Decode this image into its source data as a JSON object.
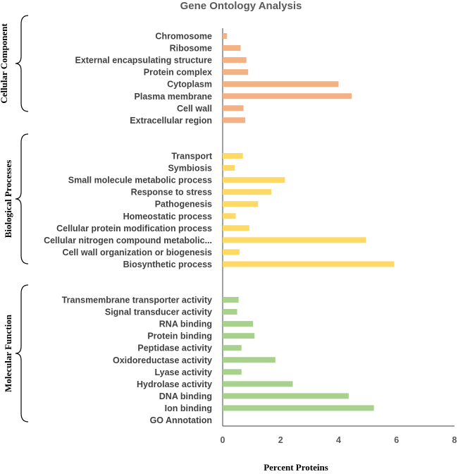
{
  "chart_data": {
    "type": "bar",
    "orientation": "horizontal",
    "title": "Gene Ontology Analysis",
    "xlabel": "Percent Proteins",
    "xlim": [
      0,
      8
    ],
    "xticks": [
      0,
      2,
      4,
      6,
      8
    ],
    "grid": false,
    "groups": [
      {
        "name": "Cellular Component",
        "color": "#f4b183",
        "categories": [
          "Chromosome",
          "Ribosome",
          "External encapsulating structure",
          "Protein complex",
          "Cytoplasm",
          "Plasma membrane",
          "Cell wall",
          "Extracellular region"
        ],
        "values": [
          0.15,
          0.62,
          0.82,
          0.88,
          4.0,
          4.45,
          0.72,
          0.78
        ]
      },
      {
        "name": "Biological Processes",
        "color": "#ffd966",
        "categories": [
          "Transport",
          "Symbiosis",
          "Small molecule metabolic process",
          "Response to stress",
          "Pathogenesis",
          "Homeostatic process",
          "Cellular protein modification process",
          "Cellular nitrogen compound metabolic...",
          "Cell wall organization or biogenesis",
          "Biosynthetic process"
        ],
        "values": [
          0.7,
          0.42,
          2.15,
          1.68,
          1.22,
          0.45,
          0.92,
          4.95,
          0.58,
          5.92
        ]
      },
      {
        "name": "Molecular Function",
        "color": "#a9d18e",
        "categories": [
          "Transmembrane transporter activity",
          "Signal transducer activity",
          "RNA binding",
          "Protein binding",
          "Peptidase activity",
          "Oxidoreductase activity",
          "Lyase activity",
          "Hydrolase activity",
          "DNA binding",
          "Ion binding",
          "GO Annotation"
        ],
        "values": [
          0.55,
          0.5,
          1.05,
          1.1,
          0.65,
          1.82,
          0.65,
          2.42,
          4.35,
          5.22,
          null
        ]
      }
    ]
  }
}
